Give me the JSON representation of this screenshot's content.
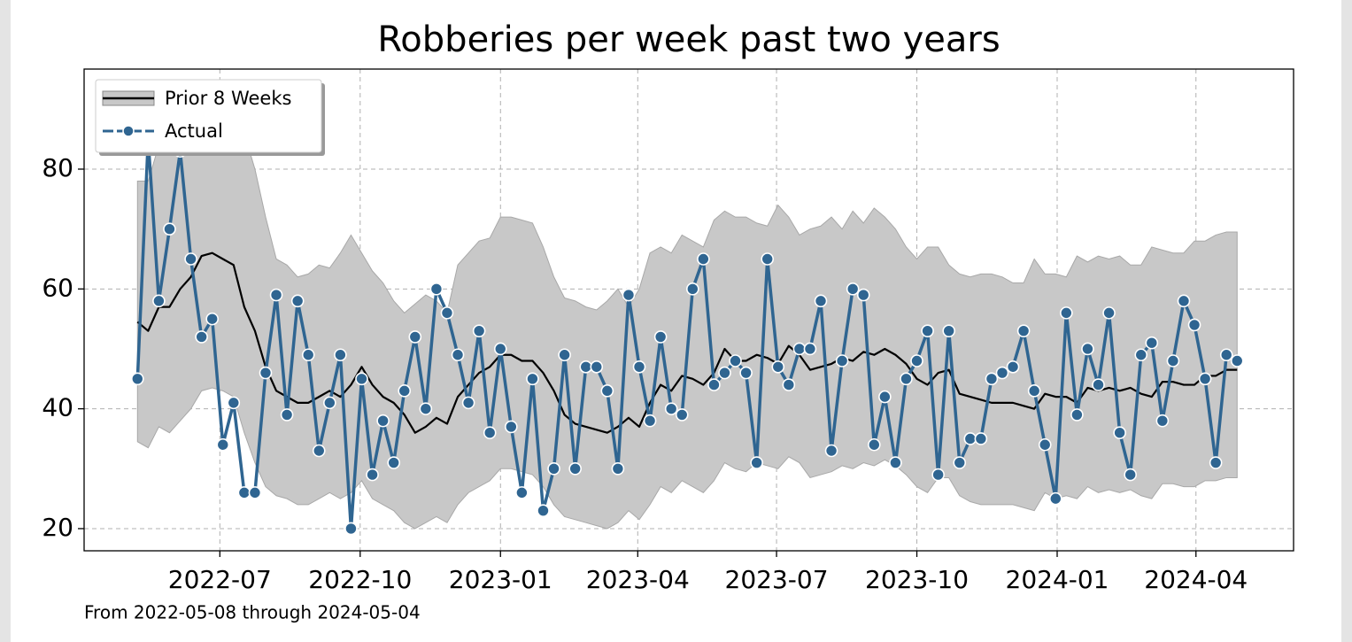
{
  "chart_data": {
    "type": "line",
    "title": "Robberies per week past two years",
    "footnote": "From  2022-05-08 through  2024-05-04",
    "x": [
      "2022-05-08",
      "2022-05-15",
      "2022-05-22",
      "2022-05-29",
      "2022-06-05",
      "2022-06-12",
      "2022-06-19",
      "2022-06-26",
      "2022-07-03",
      "2022-07-10",
      "2022-07-17",
      "2022-07-24",
      "2022-07-31",
      "2022-08-07",
      "2022-08-14",
      "2022-08-21",
      "2022-08-28",
      "2022-09-04",
      "2022-09-11",
      "2022-09-18",
      "2022-09-25",
      "2022-10-02",
      "2022-10-09",
      "2022-10-16",
      "2022-10-23",
      "2022-10-30",
      "2022-11-06",
      "2022-11-13",
      "2022-11-20",
      "2022-11-27",
      "2022-12-04",
      "2022-12-11",
      "2022-12-18",
      "2022-12-25",
      "2023-01-01",
      "2023-01-08",
      "2023-01-15",
      "2023-01-22",
      "2023-01-29",
      "2023-02-05",
      "2023-02-12",
      "2023-02-19",
      "2023-02-26",
      "2023-03-05",
      "2023-03-12",
      "2023-03-19",
      "2023-03-26",
      "2023-04-02",
      "2023-04-09",
      "2023-04-16",
      "2023-04-23",
      "2023-04-30",
      "2023-05-07",
      "2023-05-14",
      "2023-05-21",
      "2023-05-28",
      "2023-06-04",
      "2023-06-11",
      "2023-06-18",
      "2023-06-25",
      "2023-07-02",
      "2023-07-09",
      "2023-07-16",
      "2023-07-23",
      "2023-07-30",
      "2023-08-06",
      "2023-08-13",
      "2023-08-20",
      "2023-08-27",
      "2023-09-03",
      "2023-09-10",
      "2023-09-17",
      "2023-09-24",
      "2023-10-01",
      "2023-10-08",
      "2023-10-15",
      "2023-10-22",
      "2023-10-29",
      "2023-11-05",
      "2023-11-12",
      "2023-11-19",
      "2023-11-26",
      "2023-12-03",
      "2023-12-10",
      "2023-12-17",
      "2023-12-24",
      "2023-12-31",
      "2024-01-07",
      "2024-01-14",
      "2024-01-21",
      "2024-01-28",
      "2024-02-04",
      "2024-02-11",
      "2024-02-18",
      "2024-02-25",
      "2024-03-03",
      "2024-03-10",
      "2024-03-17",
      "2024-03-24",
      "2024-03-31",
      "2024-04-07",
      "2024-04-14",
      "2024-04-21",
      "2024-04-28"
    ],
    "series": [
      {
        "name": "Prior 8 Weeks",
        "color": "#000000",
        "band_color": "#c8c8c8",
        "values": [
          54.5,
          53,
          57,
          57,
          60,
          62,
          65.5,
          66,
          65,
          64,
          57,
          53,
          47,
          43,
          42,
          41,
          41,
          42,
          43,
          42,
          44,
          47,
          44,
          42,
          41,
          39,
          36,
          37,
          38.5,
          37.5,
          42,
          44,
          46,
          47,
          49,
          49,
          48,
          48,
          46,
          43,
          39,
          37.5,
          37,
          36.5,
          36,
          37,
          38.5,
          37,
          41,
          44,
          43,
          45.5,
          45,
          44,
          46,
          50,
          48,
          48,
          49,
          48.5,
          47.5,
          50.5,
          49,
          46.5,
          47,
          47.5,
          48.5,
          48,
          49.5,
          49,
          50,
          49,
          47.5,
          45,
          44,
          46,
          46.5,
          42.5,
          42,
          41.5,
          41,
          41,
          41,
          40.5,
          40,
          42.5,
          42,
          42,
          41,
          43.5,
          43,
          43.5,
          43,
          43.5,
          42.5,
          42,
          44.5,
          44.5,
          44,
          44,
          45.5,
          45.5,
          46.5,
          46.5
        ],
        "upper": [
          78,
          78,
          84,
          88,
          92,
          92,
          93,
          93,
          92,
          90,
          86,
          80,
          72,
          65,
          64,
          62,
          62.5,
          64,
          63.5,
          66,
          69,
          66,
          63,
          61,
          58,
          56,
          57.5,
          59,
          58,
          56,
          64,
          66,
          68,
          68.5,
          72,
          72,
          71.5,
          71,
          67,
          62,
          58.5,
          58,
          57,
          56.5,
          58,
          60,
          57,
          60,
          66,
          67,
          66,
          69,
          68,
          67,
          71.5,
          73,
          72,
          72,
          71,
          70.5,
          74,
          72,
          69,
          70,
          70.5,
          72,
          70,
          73,
          71,
          73.5,
          72,
          70,
          67,
          65,
          67,
          67,
          64,
          62.5,
          62,
          62.5,
          62.5,
          62,
          61,
          61,
          65,
          62.5,
          62.5,
          62,
          65.5,
          64.5,
          65.5,
          65,
          65.5,
          64,
          64,
          67,
          66.5,
          66,
          66,
          68,
          68,
          69,
          69.5,
          69.5
        ],
        "lower": [
          34.5,
          33.5,
          37,
          36,
          38,
          40,
          43,
          43.5,
          43,
          42,
          36,
          31,
          27,
          25.5,
          25,
          24,
          24,
          25,
          26,
          25,
          26,
          28,
          25,
          24,
          23,
          21,
          20,
          21,
          22,
          21,
          24,
          26,
          27,
          28,
          30,
          30,
          29.5,
          29,
          27,
          24,
          22,
          21.5,
          21,
          20.5,
          20,
          21,
          23,
          21.5,
          24,
          27,
          26,
          28,
          27,
          26,
          28,
          31,
          30,
          29.5,
          31,
          30.5,
          30,
          32,
          31,
          28.5,
          29,
          29.5,
          30.5,
          30,
          31,
          30.5,
          31.5,
          30.5,
          29,
          27,
          26,
          28.5,
          28.5,
          25.5,
          24.5,
          24,
          24,
          24,
          24,
          23.5,
          23,
          26,
          25,
          25.5,
          25,
          27,
          26,
          26.5,
          26,
          26.5,
          25.5,
          25,
          27.5,
          27.5,
          27,
          27,
          28,
          28,
          28.5,
          28.5
        ]
      },
      {
        "name": "Actual",
        "color": "#2f6591",
        "marker": true,
        "values": [
          45,
          85,
          58,
          70,
          83,
          65,
          52,
          55,
          34,
          41,
          26,
          26,
          46,
          59,
          39,
          58,
          49,
          33,
          41,
          49,
          20,
          45,
          29,
          38,
          31,
          43,
          52,
          40,
          60,
          56,
          49,
          41,
          53,
          36,
          50,
          37,
          26,
          45,
          23,
          30,
          49,
          30,
          47,
          47,
          43,
          30,
          59,
          47,
          38,
          52,
          40,
          39,
          60,
          65,
          44,
          46,
          48,
          46,
          31,
          65,
          47,
          44,
          50,
          50,
          58,
          33,
          48,
          60,
          59,
          34,
          42,
          31,
          45,
          48,
          53,
          29,
          53,
          31,
          35,
          35,
          45,
          46,
          47,
          53,
          43,
          34,
          25,
          56,
          39,
          50,
          44,
          56,
          36,
          29,
          49,
          51,
          38,
          48,
          58,
          54,
          45,
          31,
          49,
          48
        ]
      }
    ],
    "xlim": [
      "2022-04-03",
      "2024-06-04"
    ],
    "xticks": [
      {
        "value": "2022-07-01",
        "label": "2022-07"
      },
      {
        "value": "2022-10-01",
        "label": "2022-10"
      },
      {
        "value": "2023-01-01",
        "label": "2023-01"
      },
      {
        "value": "2023-04-01",
        "label": "2023-04"
      },
      {
        "value": "2023-07-01",
        "label": "2023-07"
      },
      {
        "value": "2023-10-01",
        "label": "2023-10"
      },
      {
        "value": "2024-01-01",
        "label": "2024-01"
      },
      {
        "value": "2024-04-01",
        "label": "2024-04"
      }
    ],
    "ylim": [
      16.3,
      96.7
    ],
    "yticks": [
      20,
      40,
      60,
      80
    ],
    "grid": true,
    "legend": "upper left"
  }
}
